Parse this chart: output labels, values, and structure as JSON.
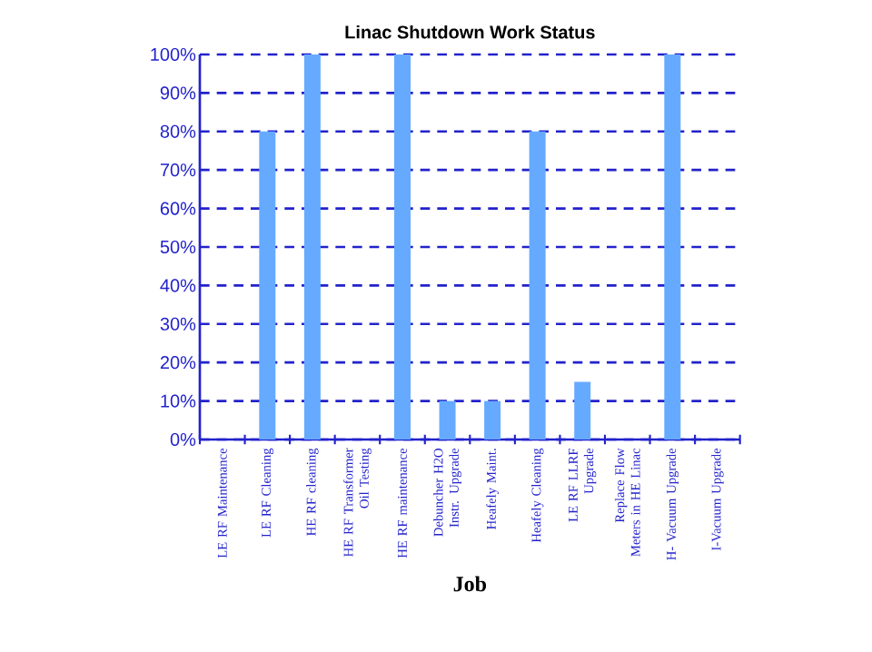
{
  "chart_data": {
    "type": "bar",
    "title": "Linac Shutdown Work Status",
    "xlabel": "Job",
    "categories": [
      "LE RF Maintenance",
      "LE RF Cleaning",
      "HE RF cleaning",
      "HE RF Transformer Oil Testing",
      "HE RF maintenance",
      "Debuncher H2O Instr. Upgrade",
      "Heafely Maint.",
      "Heafely Cleaning",
      "LE RF LLRF Upgrade",
      "Replace Flow Meters in HE Linac",
      "H- Vacuum Upgrade",
      "I-Vacuum Upgrade"
    ],
    "values": [
      0,
      80,
      100,
      0,
      100,
      10,
      10,
      80,
      15,
      0,
      100,
      0
    ],
    "color": "#66aaff",
    "ylim": [
      0,
      100
    ],
    "yticks": [
      {
        "value": 0,
        "label": "0%"
      },
      {
        "value": 10,
        "label": "10%"
      },
      {
        "value": 20,
        "label": "20%"
      },
      {
        "value": 30,
        "label": "30%"
      },
      {
        "value": 40,
        "label": "40%"
      },
      {
        "value": 50,
        "label": "50%"
      },
      {
        "value": 60,
        "label": "60%"
      },
      {
        "value": 70,
        "label": "70%"
      },
      {
        "value": 80,
        "label": "80%"
      },
      {
        "value": 90,
        "label": "90%"
      },
      {
        "value": 100,
        "label": "100%"
      }
    ],
    "grid": "y"
  }
}
